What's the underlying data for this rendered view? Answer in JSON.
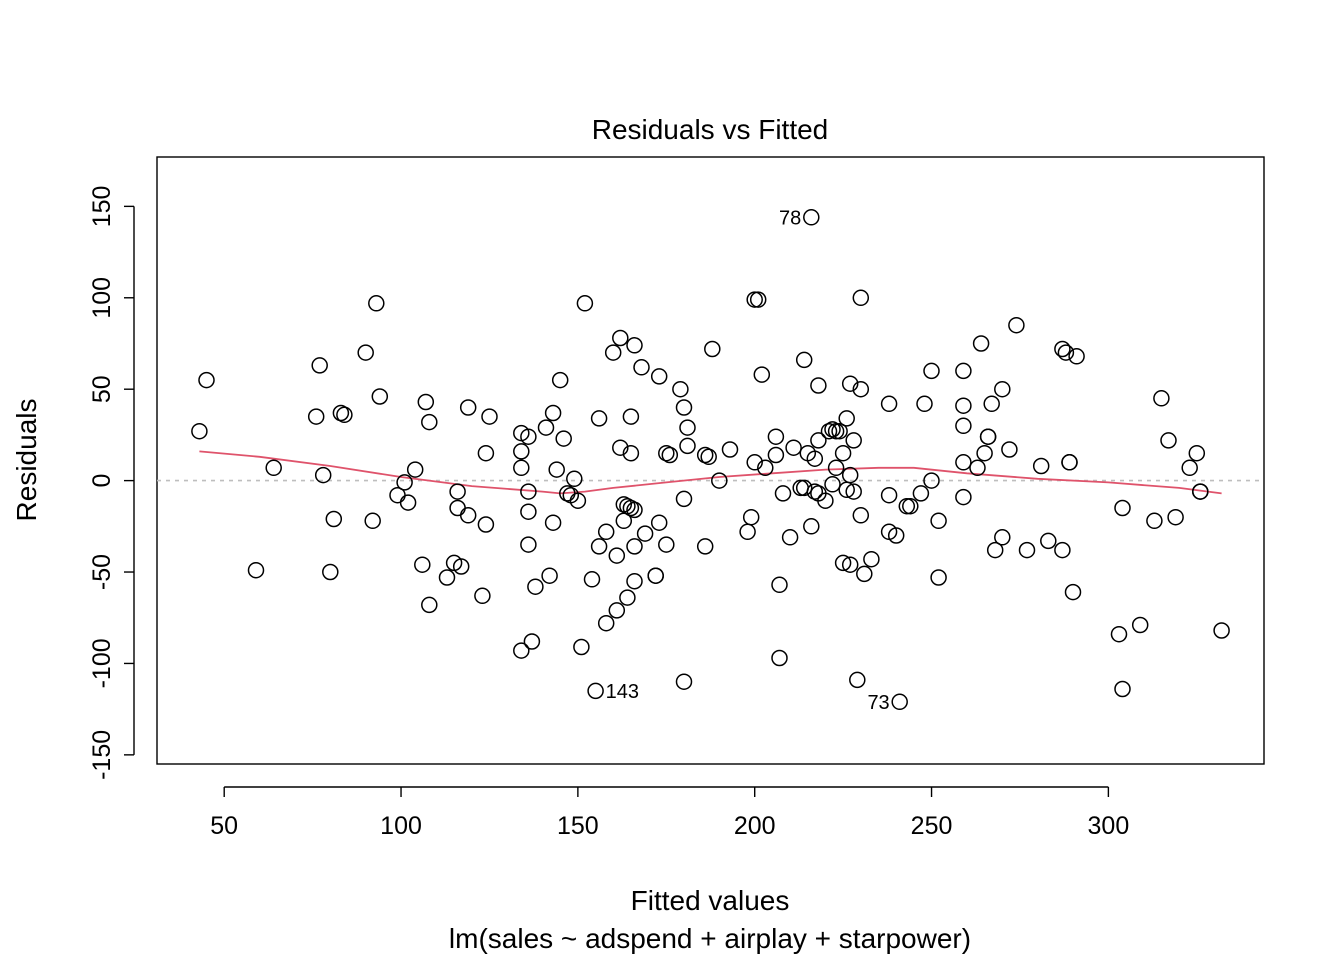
{
  "chart_data": {
    "type": "scatter",
    "title": "Residuals vs Fitted",
    "xlabel": "Fitted values",
    "ylabel": "Residuals",
    "caption": "lm(sales ~ adspend + airplay + starpower)",
    "xlim": [
      31,
      344
    ],
    "ylim": [
      -155,
      177
    ],
    "xticks": [
      50,
      100,
      150,
      200,
      250,
      300
    ],
    "yticks": [
      -150,
      -100,
      -50,
      0,
      50,
      100,
      150
    ],
    "reference_line_y": 0,
    "colors": {
      "points": "#000000",
      "smooth": "#DF536B",
      "reference": "#BEBEBE"
    },
    "points": [
      [
        43,
        27
      ],
      [
        45,
        55
      ],
      [
        59,
        -49
      ],
      [
        64,
        7
      ],
      [
        76,
        35
      ],
      [
        77,
        63
      ],
      [
        78,
        3
      ],
      [
        80,
        -50
      ],
      [
        81,
        -21
      ],
      [
        83,
        37
      ],
      [
        84,
        36
      ],
      [
        90,
        70
      ],
      [
        92,
        -22
      ],
      [
        93,
        97
      ],
      [
        94,
        46
      ],
      [
        99,
        -8
      ],
      [
        101,
        -1
      ],
      [
        102,
        -12
      ],
      [
        104,
        6
      ],
      [
        106,
        -46
      ],
      [
        107,
        43
      ],
      [
        108,
        32
      ],
      [
        108,
        -68
      ],
      [
        113,
        -53
      ],
      [
        115,
        -45
      ],
      [
        116,
        -15
      ],
      [
        116,
        -6
      ],
      [
        117,
        -47
      ],
      [
        119,
        -19
      ],
      [
        119,
        40
      ],
      [
        123,
        -63
      ],
      [
        124,
        -24
      ],
      [
        124,
        15
      ],
      [
        125,
        35
      ],
      [
        134,
        -93
      ],
      [
        134,
        7
      ],
      [
        134,
        16
      ],
      [
        134,
        26
      ],
      [
        136,
        24
      ],
      [
        136,
        -35
      ],
      [
        136,
        -6
      ],
      [
        136,
        -17
      ],
      [
        137,
        -88
      ],
      [
        138,
        -58
      ],
      [
        141,
        29
      ],
      [
        142,
        -52
      ],
      [
        143,
        -23
      ],
      [
        143,
        37
      ],
      [
        144,
        6
      ],
      [
        145,
        55
      ],
      [
        146,
        23
      ],
      [
        147,
        -7
      ],
      [
        148,
        -8
      ],
      [
        149,
        1
      ],
      [
        150,
        -11
      ],
      [
        151,
        -91
      ],
      [
        152,
        97
      ],
      [
        154,
        -54
      ],
      [
        155,
        -115
      ],
      [
        156,
        -36
      ],
      [
        156,
        34
      ],
      [
        158,
        -28
      ],
      [
        158,
        -78
      ],
      [
        160,
        70
      ],
      [
        161,
        -41
      ],
      [
        161,
        -71
      ],
      [
        162,
        18
      ],
      [
        162,
        78
      ],
      [
        163,
        -22
      ],
      [
        163,
        -13
      ],
      [
        164,
        -64
      ],
      [
        164,
        -14
      ],
      [
        165,
        -15
      ],
      [
        165,
        15
      ],
      [
        165,
        35
      ],
      [
        166,
        -16
      ],
      [
        166,
        -36
      ],
      [
        166,
        74
      ],
      [
        166,
        -55
      ],
      [
        168,
        62
      ],
      [
        169,
        -29
      ],
      [
        172,
        -52
      ],
      [
        172,
        -52
      ],
      [
        173,
        -23
      ],
      [
        173,
        57
      ],
      [
        175,
        -35
      ],
      [
        175,
        15
      ],
      [
        176,
        14
      ],
      [
        179,
        50
      ],
      [
        180,
        -10
      ],
      [
        180,
        40
      ],
      [
        180,
        -110
      ],
      [
        181,
        29
      ],
      [
        181,
        19
      ],
      [
        186,
        -36
      ],
      [
        186,
        14
      ],
      [
        187,
        13
      ],
      [
        188,
        72
      ],
      [
        190,
        0
      ],
      [
        193,
        17
      ],
      [
        198,
        -28
      ],
      [
        199,
        -20
      ],
      [
        200,
        10
      ],
      [
        200,
        99
      ],
      [
        201,
        99
      ],
      [
        202,
        58
      ],
      [
        203,
        7
      ],
      [
        206,
        24
      ],
      [
        206,
        14
      ],
      [
        207,
        -57
      ],
      [
        207,
        -97
      ],
      [
        208,
        -7
      ],
      [
        210,
        -31
      ],
      [
        211,
        18
      ],
      [
        213,
        -4
      ],
      [
        214,
        66
      ],
      [
        214,
        -4
      ],
      [
        215,
        15
      ],
      [
        216,
        -25
      ],
      [
        217,
        -6
      ],
      [
        217,
        12
      ],
      [
        218,
        -7
      ],
      [
        218,
        22
      ],
      [
        218,
        52
      ],
      [
        220,
        -11
      ],
      [
        221,
        27
      ],
      [
        222,
        28
      ],
      [
        222,
        -2
      ],
      [
        223,
        7
      ],
      [
        223,
        27
      ],
      [
        224,
        27
      ],
      [
        225,
        15
      ],
      [
        225,
        -45
      ],
      [
        226,
        -5
      ],
      [
        226,
        34
      ],
      [
        227,
        -46
      ],
      [
        227,
        3
      ],
      [
        227,
        53
      ],
      [
        228,
        22
      ],
      [
        228,
        -6
      ],
      [
        229,
        -109
      ],
      [
        230,
        100
      ],
      [
        230,
        -19
      ],
      [
        230,
        50
      ],
      [
        231,
        -51
      ],
      [
        233,
        -43
      ],
      [
        238,
        42
      ],
      [
        238,
        -28
      ],
      [
        238,
        -8
      ],
      [
        240,
        -30
      ],
      [
        243,
        -14
      ],
      [
        244,
        -14
      ],
      [
        247,
        -7
      ],
      [
        248,
        42
      ],
      [
        250,
        60
      ],
      [
        250,
        0
      ],
      [
        252,
        -22
      ],
      [
        252,
        -53
      ],
      [
        259,
        -9
      ],
      [
        259,
        10
      ],
      [
        259,
        30
      ],
      [
        259,
        41
      ],
      [
        259,
        60
      ],
      [
        263,
        7
      ],
      [
        264,
        75
      ],
      [
        265,
        15
      ],
      [
        266,
        24
      ],
      [
        266,
        24
      ],
      [
        267,
        42
      ],
      [
        268,
        -38
      ],
      [
        270,
        50
      ],
      [
        270,
        -31
      ],
      [
        272,
        17
      ],
      [
        274,
        85
      ],
      [
        277,
        -38
      ],
      [
        281,
        8
      ],
      [
        283,
        -33
      ],
      [
        287,
        72
      ],
      [
        287,
        -38
      ],
      [
        288,
        70
      ],
      [
        289,
        10
      ],
      [
        289,
        10
      ],
      [
        290,
        -61
      ],
      [
        291,
        68
      ],
      [
        303,
        -84
      ],
      [
        304,
        -114
      ],
      [
        304,
        -15
      ],
      [
        309,
        -79
      ],
      [
        313,
        -22
      ],
      [
        315,
        45
      ],
      [
        317,
        22
      ],
      [
        319,
        -20
      ],
      [
        323,
        7
      ],
      [
        325,
        15
      ],
      [
        326,
        -6
      ],
      [
        326,
        -6
      ],
      [
        332,
        -82
      ],
      [
        216,
        144
      ],
      [
        241,
        -121
      ]
    ],
    "labeled_points": [
      {
        "label": "78",
        "x": 216,
        "y": 144,
        "side": "left"
      },
      {
        "label": "143",
        "x": 155,
        "y": -115,
        "side": "right"
      },
      {
        "label": "73",
        "x": 241,
        "y": -121,
        "side": "left"
      }
    ],
    "smooth": [
      [
        43,
        16
      ],
      [
        60,
        13
      ],
      [
        80,
        8
      ],
      [
        100,
        2
      ],
      [
        120,
        -3
      ],
      [
        140,
        -6
      ],
      [
        145,
        -7
      ],
      [
        152,
        -6
      ],
      [
        160,
        -4
      ],
      [
        175,
        -1
      ],
      [
        190,
        2
      ],
      [
        205,
        4
      ],
      [
        220,
        6
      ],
      [
        235,
        7
      ],
      [
        245,
        7
      ],
      [
        260,
        4
      ],
      [
        280,
        1
      ],
      [
        300,
        -1
      ],
      [
        320,
        -4
      ],
      [
        332,
        -7
      ]
    ]
  }
}
